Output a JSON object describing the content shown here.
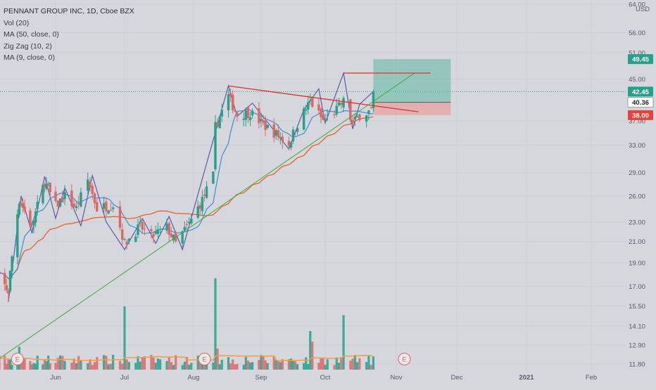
{
  "legend": {
    "title": "PENNANT GROUP INC, 1D, Cboe BZX",
    "vol": "Vol (20)",
    "ma50": "MA (50, close, 0)",
    "zigzag": "Zig Zag (10, 2)",
    "ma9": "MA (9, close, 0)"
  },
  "currency": "USD",
  "colors": {
    "up": "#26a08c",
    "down": "#e06666",
    "ma50": "#e8692c",
    "ma9": "#3b8fd6",
    "zigzag": "#5a5aa8",
    "trendline": "#e03030",
    "support": "#3cab3c",
    "target_zone": "#5fb8a5",
    "stop_zone": "#e8a0a0",
    "earnings": "#e06666"
  },
  "chart_data": {
    "type": "candlestick",
    "y_scale": "log",
    "y_ticks": [
      "64.00",
      "56.00",
      "51.00",
      "45.00",
      "37.00",
      "33.00",
      "29.00",
      "26.00",
      "23.00",
      "21.00",
      "19.00",
      "17.00",
      "15.50",
      "14.10",
      "12.90",
      "11.80"
    ],
    "x_ticks": [
      "Jun",
      "Jul",
      "Aug",
      "Sep",
      "Oct",
      "Nov",
      "Dec",
      "2021",
      "Feb"
    ],
    "earnings_markers": [
      {
        "label": "E",
        "date": "2020-05-11"
      },
      {
        "label": "E",
        "date": "2020-08-06"
      },
      {
        "label": "E",
        "date": "2020-11-05"
      }
    ],
    "price_tags": [
      {
        "value": "49.45",
        "role": "target"
      },
      {
        "value": "42.45",
        "role": "last"
      },
      {
        "value": "40.36",
        "role": "entry"
      },
      {
        "value": "38.00",
        "role": "stop"
      }
    ],
    "position": {
      "entry": 40.36,
      "target": 49.45,
      "stop": 38.0,
      "start": "2020-10-22",
      "end": "2020-11-28"
    },
    "resistance_line": {
      "from": [
        "2020-08-17",
        43.6
      ],
      "to": [
        "2020-11-12",
        38.6
      ]
    },
    "support_line": {
      "from": [
        "2020-04-27",
        11.9
      ],
      "to": [
        "2020-11-10",
        46.3
      ]
    },
    "top_ray": {
      "from": [
        "2020-10-09",
        46.3
      ],
      "to": [
        "2020-11-18",
        46.3
      ]
    }
  }
}
